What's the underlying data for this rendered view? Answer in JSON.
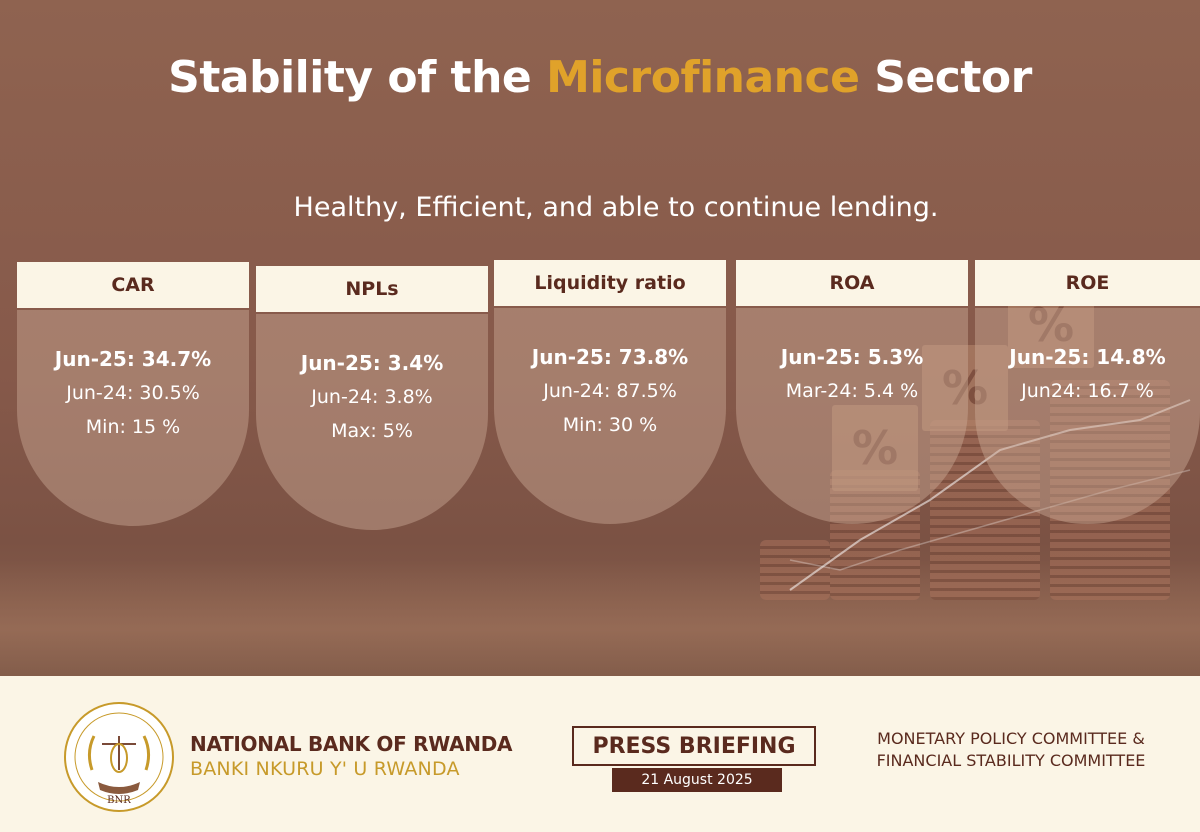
{
  "title": {
    "part1": "Stability of the ",
    "accent": "Microfinance",
    "part2": " Sector"
  },
  "subtitle": "Healthy, Efficient, and able to continue lending.",
  "colors": {
    "brown": "#5a2a1e",
    "gold": "#e0a22a",
    "cream": "#fbf5e6"
  },
  "cards": [
    {
      "label": "CAR",
      "main": "Jun-25: 34.7%",
      "line2": "Jun-24: 30.5%",
      "line3": "Min: 15 %"
    },
    {
      "label": "NPLs",
      "main": "Jun-25: 3.4%",
      "line2": "Jun-24: 3.8%",
      "line3": "Max: 5%"
    },
    {
      "label": "Liquidity ratio",
      "main": "Jun-25: 73.8%",
      "line2": "Jun-24: 87.5%",
      "line3": "Min: 30 %"
    },
    {
      "label": "ROA",
      "main": "Jun-25: 5.3%",
      "line2": "Mar-24: 5.4 %"
    },
    {
      "label": "ROE",
      "main": "Jun-25: 14.8%",
      "line2": "Jun24: 16.7 %"
    }
  ],
  "footer": {
    "logo_icon": "bnr-seal-icon",
    "seal_text": "BNR",
    "bank_en": "NATIONAL BANK OF RWANDA",
    "bank_rw": "BANKI NKURU Y' U RWANDA",
    "press": "PRESS BRIEFING",
    "date": "21 August 2025",
    "committee1": "MONETARY POLICY COMMITTEE &",
    "committee2": "FINANCIAL STABILITY COMMITTEE"
  }
}
